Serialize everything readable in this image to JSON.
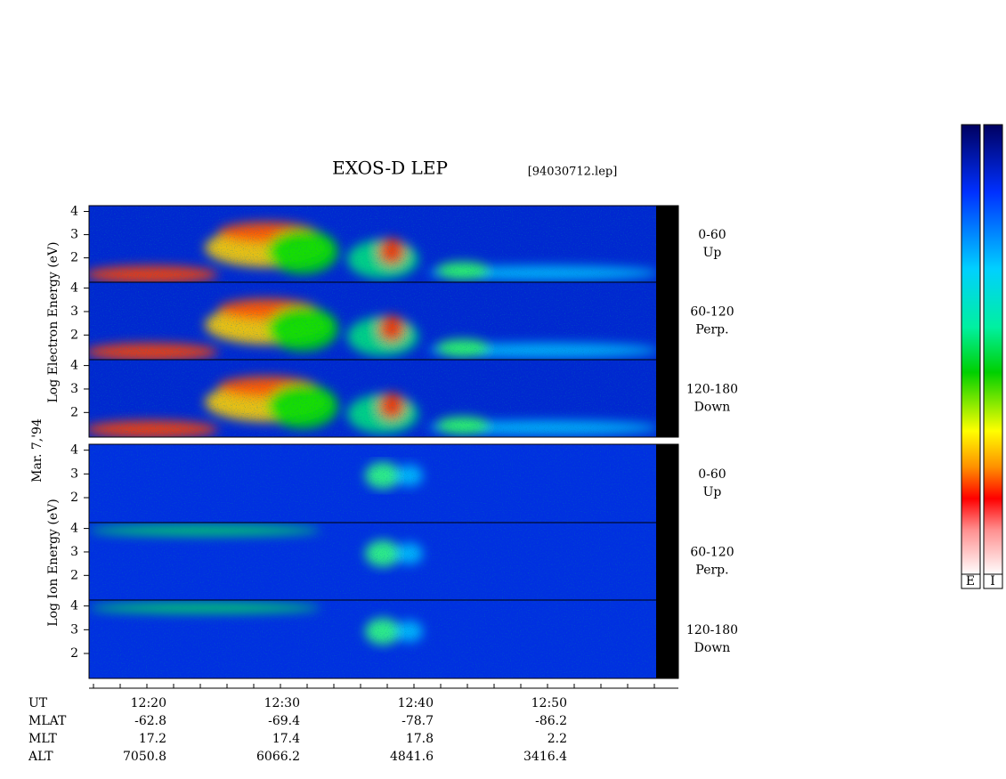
{
  "title": "EXOS-D LEP",
  "file": "[94030712.lep]",
  "date": "Mar. 7,'94",
  "electron_axis_label": "Log Electron Energy (eV)",
  "ion_axis_label": "Log Ion Energy (eV)",
  "panels": [
    {
      "pitch": "0-60",
      "direction": "Up",
      "ylim": [
        0.95,
        4.25
      ],
      "yticks": [
        2,
        3,
        4
      ]
    },
    {
      "pitch": "60-120",
      "direction": "Perp.",
      "ylim": [
        0.95,
        4.25
      ],
      "yticks": [
        2,
        3,
        4
      ]
    },
    {
      "pitch": "120-180",
      "direction": "Down",
      "ylim": [
        0.95,
        4.25
      ],
      "yticks": [
        2,
        3,
        4
      ]
    },
    {
      "pitch": "0-60",
      "direction": "Up",
      "ylim": [
        0.95,
        4.25
      ],
      "yticks": [
        2,
        3,
        4
      ]
    },
    {
      "pitch": "60-120",
      "direction": "Perp.",
      "ylim": [
        0.95,
        4.25
      ],
      "yticks": [
        2,
        3,
        4
      ]
    },
    {
      "pitch": "120-180",
      "direction": "Down",
      "ylim": [
        0.95,
        4.25
      ],
      "yticks": [
        2,
        3,
        4
      ]
    }
  ],
  "rows": [
    {
      "label": "UT",
      "values": [
        "12:20",
        "12:30",
        "12:40",
        "12:50"
      ]
    },
    {
      "label": "MLAT",
      "values": [
        -62.8,
        -69.4,
        -78.7,
        -86.2
      ]
    },
    {
      "label": "MLT",
      "values": [
        17.2,
        17.4,
        17.8,
        2.2
      ]
    },
    {
      "label": "ALT",
      "values": [
        7050.8,
        6066.2,
        4841.6,
        3416.4
      ]
    }
  ],
  "colorbar_labels": [
    "E",
    "I"
  ]
}
